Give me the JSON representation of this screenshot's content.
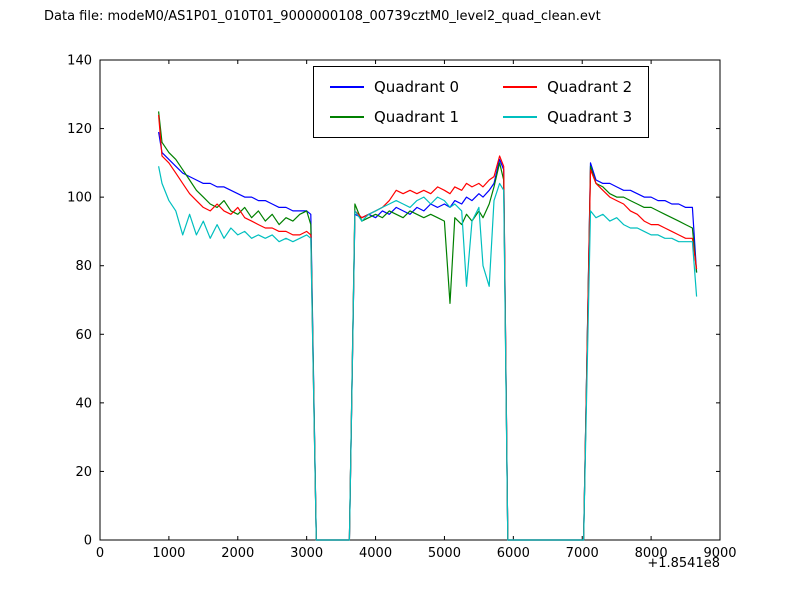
{
  "title": "Data file: modeM0/AS1P01_010T01_9000000108_00739cztM0_level2_quad_clean.evt",
  "chart_data": {
    "type": "line",
    "xlabel": "",
    "ylabel": "",
    "xlim": [
      0,
      9000
    ],
    "ylim": [
      0,
      140
    ],
    "x_ticks": [
      0,
      1000,
      2000,
      3000,
      4000,
      5000,
      6000,
      7000,
      8000,
      9000
    ],
    "y_ticks": [
      0,
      20,
      40,
      60,
      80,
      100,
      120,
      140
    ],
    "x_offset_label": "+1.8541e8",
    "legend": {
      "position": "upper center",
      "columns": 2
    },
    "x": [
      850,
      900,
      1000,
      1100,
      1200,
      1300,
      1400,
      1500,
      1600,
      1700,
      1800,
      1900,
      2000,
      2100,
      2200,
      2300,
      2400,
      2500,
      2600,
      2700,
      2800,
      2900,
      3000,
      3060,
      3140,
      3400,
      3620,
      3700,
      3800,
      3900,
      4000,
      4100,
      4200,
      4300,
      4400,
      4500,
      4600,
      4700,
      4800,
      4900,
      5000,
      5080,
      5150,
      5250,
      5320,
      5400,
      5500,
      5560,
      5650,
      5720,
      5800,
      5860,
      5920,
      6200,
      6600,
      7020,
      7120,
      7200,
      7300,
      7400,
      7500,
      7600,
      7700,
      7800,
      7900,
      8000,
      8100,
      8200,
      8300,
      8400,
      8500,
      8600,
      8660
    ],
    "series": [
      {
        "name": "Quadrant 0",
        "color": "#0000ff",
        "values": [
          119,
          113,
          111,
          109,
          107,
          106,
          105,
          104,
          104,
          103,
          103,
          102,
          101,
          100,
          100,
          99,
          99,
          98,
          97,
          97,
          96,
          96,
          96,
          95,
          0,
          0,
          0,
          95,
          94,
          95,
          94,
          96,
          95,
          97,
          96,
          95,
          97,
          96,
          98,
          97,
          98,
          97,
          99,
          98,
          100,
          99,
          101,
          100,
          102,
          104,
          111,
          108,
          0,
          0,
          0,
          0,
          110,
          105,
          104,
          104,
          103,
          102,
          102,
          101,
          100,
          100,
          99,
          99,
          98,
          98,
          97,
          97,
          78
        ]
      },
      {
        "name": "Quadrant 1",
        "color": "#008000",
        "values": [
          125,
          116,
          113,
          111,
          108,
          105,
          102,
          100,
          98,
          97,
          99,
          96,
          95,
          97,
          94,
          96,
          93,
          95,
          92,
          94,
          93,
          95,
          96,
          92,
          0,
          0,
          0,
          98,
          93,
          94,
          95,
          94,
          96,
          95,
          94,
          96,
          95,
          94,
          95,
          94,
          93,
          69,
          94,
          92,
          95,
          93,
          96,
          94,
          98,
          103,
          110,
          105,
          0,
          0,
          0,
          0,
          109,
          104,
          103,
          101,
          100,
          100,
          99,
          98,
          97,
          97,
          96,
          95,
          94,
          93,
          92,
          91,
          78
        ]
      },
      {
        "name": "Quadrant 2",
        "color": "#ff0000",
        "values": [
          124,
          112,
          110,
          107,
          104,
          101,
          99,
          97,
          96,
          98,
          96,
          95,
          97,
          94,
          93,
          92,
          91,
          91,
          90,
          90,
          89,
          89,
          90,
          89,
          0,
          0,
          0,
          96,
          94,
          95,
          96,
          97,
          99,
          102,
          101,
          102,
          101,
          102,
          101,
          103,
          102,
          101,
          103,
          102,
          104,
          103,
          104,
          103,
          105,
          106,
          112,
          109,
          0,
          0,
          0,
          0,
          108,
          104,
          102,
          100,
          99,
          98,
          96,
          95,
          93,
          92,
          92,
          91,
          90,
          89,
          88,
          88,
          79
        ]
      },
      {
        "name": "Quadrant 3",
        "color": "#00bfbf",
        "values": [
          109,
          104,
          99,
          96,
          89,
          95,
          89,
          93,
          88,
          92,
          88,
          91,
          89,
          90,
          88,
          89,
          88,
          89,
          87,
          88,
          87,
          88,
          89,
          88,
          0,
          0,
          0,
          96,
          93,
          95,
          96,
          97,
          98,
          99,
          98,
          97,
          99,
          100,
          98,
          100,
          99,
          97,
          98,
          96,
          74,
          93,
          97,
          80,
          74,
          99,
          104,
          102,
          0,
          0,
          0,
          0,
          96,
          94,
          95,
          93,
          94,
          92,
          91,
          91,
          90,
          89,
          89,
          88,
          88,
          87,
          87,
          87,
          71
        ]
      }
    ]
  }
}
